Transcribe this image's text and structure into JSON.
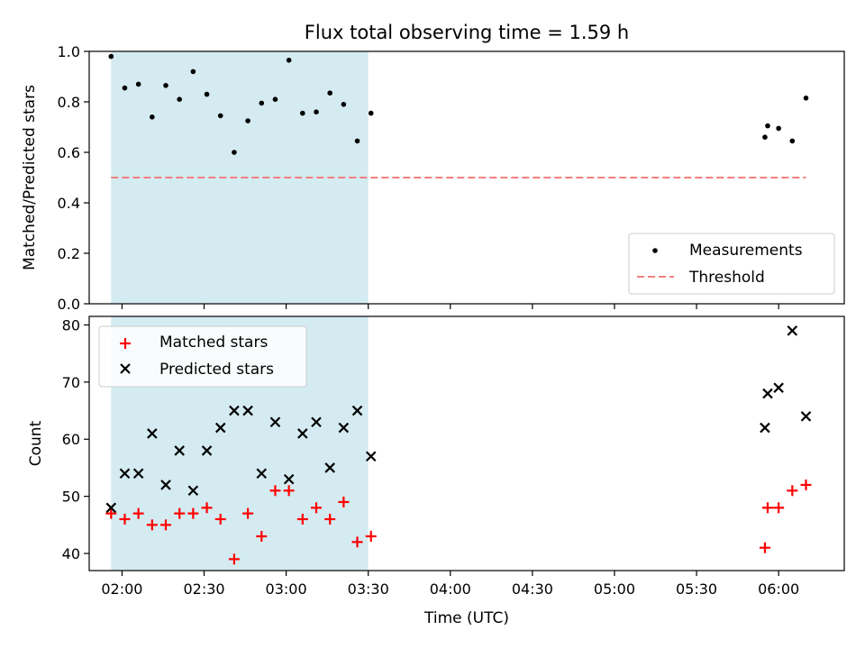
{
  "chart_data": [
    {
      "type": "scatter",
      "title": "Flux total observing time = 1.59 h",
      "xlabel": "",
      "ylabel": "Matched/Predicted stars",
      "xlim": [
        "01:48",
        "06:24"
      ],
      "ylim": [
        0,
        1.0
      ],
      "yticks": [
        0.0,
        0.2,
        0.4,
        0.6,
        0.8,
        1.0
      ],
      "ytick_labels": [
        "0.0",
        "0.2",
        "0.4",
        "0.6",
        "0.8",
        "1.0"
      ],
      "xticks": [
        "02:00",
        "02:30",
        "03:00",
        "03:30",
        "04:00",
        "04:30",
        "05:00",
        "05:30",
        "06:00"
      ],
      "xtick_labels_shown": false,
      "grid": false,
      "legend_position": "lower-right",
      "shaded_region": {
        "x0": "01:56",
        "x1": "03:30",
        "color": "#d4ebf1"
      },
      "series": [
        {
          "name": "Measurements",
          "kind": "scatter",
          "marker": "dot",
          "color": "#000000",
          "x": [
            "01:56",
            "02:01",
            "02:06",
            "02:11",
            "02:16",
            "02:21",
            "02:26",
            "02:31",
            "02:36",
            "02:41",
            "02:46",
            "02:51",
            "02:56",
            "03:01",
            "03:06",
            "03:11",
            "03:16",
            "03:21",
            "03:26",
            "03:31",
            "05:55",
            "05:56",
            "06:00",
            "06:05",
            "06:10"
          ],
          "y": [
            0.98,
            0.855,
            0.87,
            0.74,
            0.865,
            0.81,
            0.92,
            0.83,
            0.745,
            0.6,
            0.725,
            0.795,
            0.81,
            0.965,
            0.755,
            0.76,
            0.835,
            0.79,
            0.645,
            0.755,
            0.66,
            0.705,
            0.695,
            0.645,
            0.815
          ]
        },
        {
          "name": "Threshold",
          "kind": "dashed-line",
          "color": "#f08080",
          "x": [
            "01:56",
            "06:10"
          ],
          "y": [
            0.5,
            0.5
          ]
        }
      ]
    },
    {
      "type": "scatter",
      "title": "",
      "xlabel": "Time (UTC)",
      "ylabel": "Count",
      "xlim": [
        "01:48",
        "06:24"
      ],
      "ylim": [
        37,
        81.5
      ],
      "yticks": [
        40,
        50,
        60,
        70,
        80
      ],
      "ytick_labels": [
        "40",
        "50",
        "60",
        "70",
        "80"
      ],
      "xticks": [
        "02:00",
        "02:30",
        "03:00",
        "03:30",
        "04:00",
        "04:30",
        "05:00",
        "05:30",
        "06:00"
      ],
      "xtick_labels": [
        "02:00",
        "02:30",
        "03:00",
        "03:30",
        "04:00",
        "04:30",
        "05:00",
        "05:30",
        "06:00"
      ],
      "grid": false,
      "legend_position": "upper-left",
      "shaded_region": {
        "x0": "01:56",
        "x1": "03:30",
        "color": "#d4ebf1"
      },
      "series": [
        {
          "name": "Matched stars",
          "kind": "scatter",
          "marker": "plus",
          "color": "#ff0000",
          "x": [
            "01:56",
            "02:01",
            "02:06",
            "02:11",
            "02:16",
            "02:21",
            "02:26",
            "02:31",
            "02:36",
            "02:41",
            "02:46",
            "02:51",
            "02:56",
            "03:01",
            "03:06",
            "03:11",
            "03:16",
            "03:21",
            "03:26",
            "03:31",
            "05:55",
            "05:56",
            "06:00",
            "06:05",
            "06:10"
          ],
          "y": [
            47,
            46,
            47,
            45,
            45,
            47,
            47,
            48,
            46,
            39,
            47,
            43,
            51,
            51,
            46,
            48,
            46,
            49,
            42,
            43,
            41,
            48,
            48,
            51,
            52
          ]
        },
        {
          "name": "Predicted stars",
          "kind": "scatter",
          "marker": "x",
          "color": "#000000",
          "x": [
            "01:56",
            "02:01",
            "02:06",
            "02:11",
            "02:16",
            "02:21",
            "02:26",
            "02:31",
            "02:36",
            "02:41",
            "02:46",
            "02:51",
            "02:56",
            "03:01",
            "03:06",
            "03:11",
            "03:16",
            "03:21",
            "03:26",
            "03:31",
            "05:55",
            "05:56",
            "06:00",
            "06:05",
            "06:10"
          ],
          "y": [
            48,
            54,
            54,
            61,
            52,
            58,
            51,
            58,
            62,
            65,
            65,
            54,
            63,
            53,
            61,
            63,
            55,
            62,
            65,
            57,
            62,
            68,
            69,
            79,
            64
          ]
        }
      ]
    }
  ]
}
